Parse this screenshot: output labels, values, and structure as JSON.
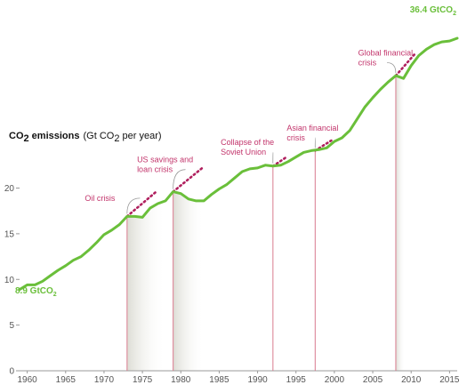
{
  "chart_data": {
    "type": "line",
    "ylabel_bold": "CO",
    "ylabel_bold_sub": "2",
    "ylabel_bold_tail": " emissions",
    "ylabel_units": "(Gt CO",
    "ylabel_units_sub": "2",
    "ylabel_units_tail": " per year)",
    "xlim": [
      1959,
      2016
    ],
    "ylim": [
      0,
      40
    ],
    "x_ticks": [
      1960,
      1965,
      1970,
      1975,
      1980,
      1985,
      1990,
      1995,
      2000,
      2005,
      2010,
      2015
    ],
    "y_ticks": [
      0,
      5,
      10,
      15,
      20
    ],
    "series": [
      {
        "color": "#6abf3a",
        "x": [
          1959,
          1960,
          1961,
          1962,
          1963,
          1964,
          1965,
          1966,
          1967,
          1968,
          1969,
          1970,
          1971,
          1972,
          1973,
          1974,
          1975,
          1976,
          1977,
          1978,
          1979,
          1980,
          1981,
          1982,
          1983,
          1984,
          1985,
          1986,
          1987,
          1988,
          1989,
          1990,
          1991,
          1992,
          1993,
          1994,
          1995,
          1996,
          1997,
          1998,
          1999,
          2000,
          2001,
          2002,
          2003,
          2004,
          2005,
          2006,
          2007,
          2008,
          2009,
          2010,
          2011,
          2012,
          2013,
          2014,
          2015,
          2016
        ],
        "y": [
          8.9,
          9.4,
          9.4,
          9.8,
          10.4,
          11.0,
          11.5,
          12.1,
          12.5,
          13.2,
          14.0,
          14.9,
          15.4,
          16.0,
          16.9,
          16.9,
          16.8,
          17.8,
          18.3,
          18.6,
          19.6,
          19.4,
          18.8,
          18.6,
          18.6,
          19.3,
          19.9,
          20.4,
          21.1,
          21.8,
          22.1,
          22.2,
          22.5,
          22.4,
          22.5,
          22.9,
          23.4,
          23.9,
          24.1,
          24.2,
          24.4,
          25.1,
          25.5,
          26.3,
          27.6,
          28.9,
          29.9,
          30.8,
          31.6,
          32.3,
          32.0,
          33.4,
          34.5,
          35.2,
          35.7,
          36.0,
          36.1,
          36.4
        ]
      }
    ],
    "start_label": "8.9 GtCO",
    "start_label_sub": "2",
    "end_label": "36.4 GtCO",
    "end_label_sub": "2",
    "events": [
      {
        "x": 1973,
        "y": 16.9,
        "y_end": 19.6,
        "x_end": 1976.8,
        "lines": [
          "Oil crisis"
        ],
        "label_x": 1967.5,
        "label_y": 18.6
      },
      {
        "x": 1979,
        "y": 19.6,
        "y_end": 22.2,
        "x_end": 1982.8,
        "lines": [
          "US savings and",
          "loan crisis"
        ],
        "label_x": 1974.3,
        "label_y": 22.8
      },
      {
        "x": 1992,
        "y": 22.4,
        "y_end": 23.3,
        "x_end": 1993.6,
        "lines": [
          "Collapse of the",
          "Soviet Union"
        ],
        "label_x": 1985.2,
        "label_y": 24.7
      },
      {
        "x": 1997.5,
        "y": 24.1,
        "y_end": 25.2,
        "x_end": 1999.6,
        "lines": [
          "Asian financial",
          "crisis"
        ],
        "label_x": 1993.8,
        "label_y": 26.3
      },
      {
        "x": 2008,
        "y": 32.3,
        "y_end": 34.6,
        "x_end": 2010.4,
        "lines": [
          "Global financial",
          "crisis"
        ],
        "label_x": 2003.1,
        "label_y": 34.5
      }
    ]
  }
}
